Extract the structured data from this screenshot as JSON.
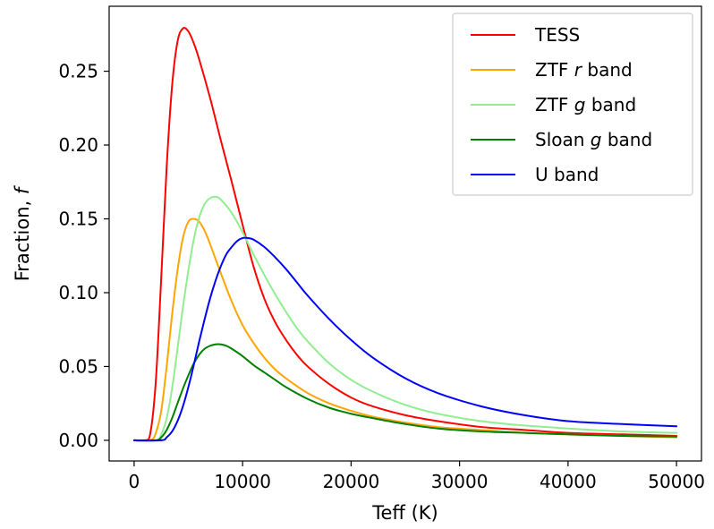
{
  "chart_data": {
    "type": "line",
    "title": "",
    "xlabel": "Teff (K)",
    "ylabel": "Fraction, ",
    "ylabel_symbol": "f",
    "xlim": [
      -2300,
      52300
    ],
    "ylim": [
      -0.014,
      0.294
    ],
    "x_ticks": [
      0,
      10000,
      20000,
      30000,
      40000,
      50000
    ],
    "x_tick_labels": [
      "0",
      "10000",
      "20000",
      "30000",
      "40000",
      "50000"
    ],
    "y_ticks": [
      0.0,
      0.05,
      0.1,
      0.15,
      0.2,
      0.25
    ],
    "y_tick_labels": [
      "0.00",
      "0.05",
      "0.10",
      "0.15",
      "0.20",
      "0.25"
    ],
    "grid": false,
    "legend_position": "top-right",
    "series": [
      {
        "name": "TESS",
        "legend_parts": [
          {
            "text": "TESS",
            "italic": false
          }
        ],
        "color": "#ff0000",
        "x": [
          0,
          1000,
          1500,
          2000,
          2500,
          3000,
          3500,
          4000,
          4500,
          5000,
          5500,
          6000,
          7000,
          8000,
          9000,
          10000,
          11000,
          12000,
          13000,
          14000,
          15000,
          16000,
          18000,
          20000,
          22000,
          25000,
          28000,
          32000,
          36000,
          40000,
          45000,
          50000
        ],
        "y": [
          0.0,
          0.0,
          0.005,
          0.04,
          0.11,
          0.185,
          0.24,
          0.27,
          0.279,
          0.277,
          0.269,
          0.258,
          0.232,
          0.203,
          0.175,
          0.146,
          0.118,
          0.096,
          0.08,
          0.068,
          0.058,
          0.05,
          0.038,
          0.029,
          0.023,
          0.017,
          0.013,
          0.009,
          0.007,
          0.005,
          0.004,
          0.003
        ]
      },
      {
        "name": "ZTF r band",
        "legend_parts": [
          {
            "text": "ZTF ",
            "italic": false
          },
          {
            "text": "r",
            "italic": true
          },
          {
            "text": " band",
            "italic": false
          }
        ],
        "color": "#ffa500",
        "x": [
          0,
          1500,
          2000,
          2500,
          3000,
          3500,
          4000,
          4500,
          5000,
          5500,
          6000,
          6500,
          7000,
          8000,
          9000,
          10000,
          11000,
          12000,
          13000,
          14000,
          16000,
          18000,
          20000,
          22000,
          25000,
          28000,
          32000,
          36000,
          40000,
          45000,
          50000
        ],
        "y": [
          0.0,
          0.0,
          0.005,
          0.02,
          0.05,
          0.085,
          0.115,
          0.137,
          0.148,
          0.15,
          0.148,
          0.142,
          0.133,
          0.113,
          0.094,
          0.078,
          0.066,
          0.056,
          0.048,
          0.042,
          0.032,
          0.025,
          0.02,
          0.016,
          0.012,
          0.009,
          0.007,
          0.005,
          0.004,
          0.003,
          0.002
        ]
      },
      {
        "name": "ZTF g band",
        "legend_parts": [
          {
            "text": "ZTF ",
            "italic": false
          },
          {
            "text": "g",
            "italic": true
          },
          {
            "text": " band",
            "italic": false
          }
        ],
        "color": "#90ee90",
        "x": [
          0,
          2000,
          2500,
          3000,
          3500,
          4000,
          4500,
          5000,
          5500,
          6000,
          6500,
          7000,
          7500,
          8000,
          9000,
          10000,
          11000,
          12000,
          13000,
          14000,
          15000,
          16000,
          18000,
          20000,
          22000,
          25000,
          28000,
          32000,
          36000,
          40000,
          45000,
          50000
        ],
        "y": [
          0.0,
          0.0,
          0.004,
          0.015,
          0.035,
          0.062,
          0.09,
          0.115,
          0.136,
          0.151,
          0.16,
          0.164,
          0.165,
          0.163,
          0.154,
          0.141,
          0.126,
          0.112,
          0.099,
          0.087,
          0.076,
          0.067,
          0.052,
          0.041,
          0.033,
          0.024,
          0.018,
          0.013,
          0.01,
          0.008,
          0.006,
          0.005
        ]
      },
      {
        "name": "Sloan g band",
        "legend_parts": [
          {
            "text": "Sloan ",
            "italic": false
          },
          {
            "text": "g",
            "italic": true
          },
          {
            "text": " band",
            "italic": false
          }
        ],
        "color": "#008000",
        "x": [
          0,
          2000,
          2500,
          3000,
          3500,
          4000,
          4500,
          5000,
          5500,
          6000,
          6500,
          7000,
          7500,
          8000,
          8500,
          9000,
          10000,
          11000,
          12000,
          13000,
          14000,
          16000,
          18000,
          20000,
          22000,
          25000,
          28000,
          32000,
          36000,
          40000,
          45000,
          50000
        ],
        "y": [
          0.0,
          0.0,
          0.002,
          0.007,
          0.015,
          0.025,
          0.035,
          0.044,
          0.052,
          0.058,
          0.062,
          0.064,
          0.065,
          0.065,
          0.064,
          0.062,
          0.057,
          0.051,
          0.046,
          0.041,
          0.036,
          0.028,
          0.022,
          0.018,
          0.015,
          0.011,
          0.008,
          0.006,
          0.005,
          0.004,
          0.003,
          0.0025
        ]
      },
      {
        "name": "U band",
        "legend_parts": [
          {
            "text": "U band",
            "italic": false
          }
        ],
        "color": "#0000ff",
        "x": [
          0,
          2500,
          3000,
          3500,
          4000,
          4500,
          5000,
          5500,
          6000,
          6500,
          7000,
          7500,
          8000,
          8500,
          9000,
          9500,
          10000,
          10500,
          11000,
          12000,
          13000,
          14000,
          15000,
          16000,
          18000,
          20000,
          22000,
          25000,
          28000,
          32000,
          36000,
          40000,
          45000,
          50000
        ],
        "y": [
          0.0,
          0.0,
          0.002,
          0.006,
          0.013,
          0.023,
          0.036,
          0.051,
          0.067,
          0.082,
          0.096,
          0.108,
          0.118,
          0.126,
          0.131,
          0.135,
          0.137,
          0.137,
          0.136,
          0.131,
          0.124,
          0.116,
          0.107,
          0.098,
          0.082,
          0.068,
          0.056,
          0.042,
          0.032,
          0.023,
          0.017,
          0.013,
          0.011,
          0.0095
        ]
      }
    ]
  }
}
